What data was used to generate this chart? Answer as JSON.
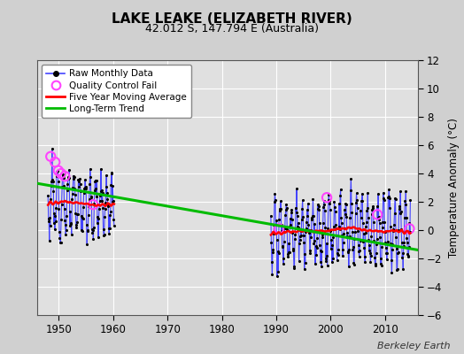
{
  "title": "LAKE LEAKE (ELIZABETH RIVER)",
  "subtitle": "42.012 S, 147.794 E (Australia)",
  "ylabel": "Temperature Anomaly (°C)",
  "credit": "Berkeley Earth",
  "ylim": [
    -6,
    12
  ],
  "yticks": [
    -6,
    -4,
    -2,
    0,
    2,
    4,
    6,
    8,
    10,
    12
  ],
  "xlim": [
    1946,
    2016
  ],
  "xticks": [
    1950,
    1960,
    1970,
    1980,
    1990,
    2000,
    2010
  ],
  "bg_color": "#d0d0d0",
  "plot_bg_color": "#e0e0e0",
  "grid_color": "#ffffff",
  "trend_x": [
    1946,
    2016
  ],
  "trend_y": [
    3.3,
    -1.4
  ],
  "raw_monthly_color": "#4444ff",
  "raw_dot_color": "#000000",
  "qc_fail_color": "#ff44ff",
  "moving_avg_color": "#ff0000",
  "trend_color": "#00bb00"
}
